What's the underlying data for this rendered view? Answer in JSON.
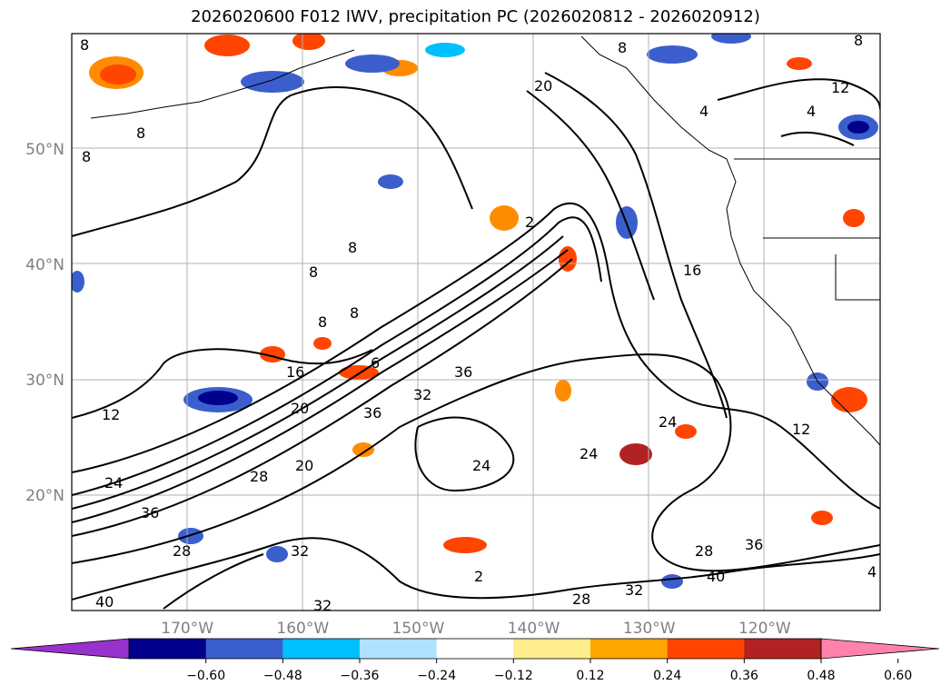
{
  "title": "2026020600 F012 IWV, precipitation PC (2026020812 - 2026020912)",
  "lat_labels": [
    {
      "label": "50°N",
      "lat": 50
    },
    {
      "label": "40°N",
      "lat": 40
    },
    {
      "label": "30°N",
      "lat": 30
    },
    {
      "label": "20°N",
      "lat": 20
    }
  ],
  "lon_labels": [
    {
      "label": "170°W",
      "lon": -170
    },
    {
      "label": "160°W",
      "lon": -160
    },
    {
      "label": "150°W",
      "lon": -150
    },
    {
      "label": "140°W",
      "lon": -140
    },
    {
      "label": "130°W",
      "lon": -130
    },
    {
      "label": "120°W",
      "lon": -120
    }
  ],
  "map_extent": {
    "lon_min": -180,
    "lon_max": -110,
    "lat_min": 10,
    "lat_max": 60
  },
  "iwv_contour_labels": [
    "8",
    "8",
    "8",
    "8",
    "8",
    "8",
    "8",
    "8",
    "8",
    "12",
    "12",
    "12",
    "16",
    "16",
    "20",
    "20",
    "20",
    "24",
    "24",
    "24",
    "24",
    "28",
    "28",
    "28",
    "28",
    "32",
    "32",
    "32",
    "32",
    "36",
    "36",
    "36",
    "36",
    "40",
    "40",
    "4",
    "4",
    "4",
    "2",
    "2",
    "6"
  ],
  "colorbar": {
    "colors": [
      "#9932cc",
      "#00008b",
      "#3a5fcd",
      "#00bfff",
      "#b0e2ff",
      "#ffffff",
      "#ffec8b",
      "#ffa500",
      "#ff4500",
      "#b22222",
      "#ff82ab"
    ],
    "ticks": [
      "−0.60",
      "−0.48",
      "−0.36",
      "−0.24",
      "−0.12",
      "0.12",
      "0.24",
      "0.36",
      "0.48",
      "0.60"
    ]
  }
}
